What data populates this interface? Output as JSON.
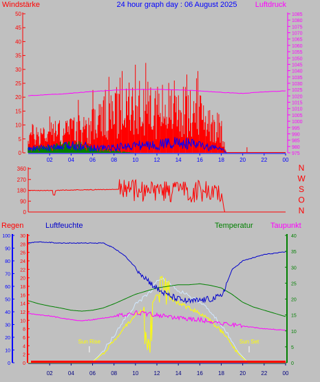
{
  "chart_data": [
    {
      "id": "wind",
      "type": "bar",
      "title": "24 hour graph day : 06 August 2025",
      "left_label": "Windstärke",
      "right_label": "Luftdruck",
      "x_ticks": [
        "02",
        "04",
        "06",
        "08",
        "10",
        "12",
        "14",
        "16",
        "18",
        "20",
        "22",
        "00"
      ],
      "x_range": [
        0,
        24
      ],
      "ylim_left": [
        0,
        50
      ],
      "y_ticks_left": [
        "0",
        "5",
        "10",
        "15",
        "20",
        "25",
        "30",
        "35",
        "40",
        "45",
        "50"
      ],
      "ylim_right": [
        975,
        1085
      ],
      "y_ticks_right": [
        "975",
        "980",
        "985",
        "990",
        "995",
        "1000",
        "1005",
        "1010",
        "1015",
        "1020",
        "1025",
        "1030",
        "1035",
        "1040",
        "1045",
        "1050",
        "1055",
        "1060",
        "1065",
        "1070",
        "1075",
        "1080",
        "1085"
      ],
      "gust_profile": {
        "hours": [
          0,
          2,
          4,
          5,
          6,
          8,
          9,
          10,
          11,
          12,
          13,
          14,
          15,
          16,
          17,
          18,
          18.5,
          24
        ],
        "values": [
          8,
          9,
          10,
          11,
          13,
          18,
          18,
          20,
          20,
          19,
          20,
          19,
          18,
          17,
          15,
          10,
          0,
          0
        ]
      },
      "wind_profile": {
        "hours": [
          0,
          2,
          3,
          4,
          5,
          6,
          8,
          10,
          12,
          13,
          14,
          16,
          17,
          18,
          18.5,
          24
        ],
        "values": [
          1.5,
          2,
          2,
          3,
          3,
          2,
          2,
          3,
          3,
          4,
          4,
          3,
          2,
          1.5,
          0,
          0
        ]
      },
      "calm_profile": {
        "hours": [
          0,
          2,
          3,
          4,
          5,
          6,
          7,
          8,
          10,
          24
        ],
        "values": [
          1,
          1.5,
          2,
          2,
          2,
          1,
          0.8,
          0.5,
          0,
          0
        ]
      },
      "pressure": {
        "hours": [
          0,
          3,
          6,
          9,
          12,
          15,
          18,
          20,
          22,
          24
        ],
        "values": [
          1020.2,
          1021.5,
          1023.5,
          1025,
          1025.2,
          1024.5,
          1022.8,
          1022,
          1023.2,
          1024
        ]
      },
      "annotations": [
        {
          "hour": 20.4,
          "value": 2
        }
      ],
      "colors": {
        "gust": "#ff0000",
        "wind": "#0000ff",
        "calm": "#008000",
        "pressure": "#ff00ff",
        "left_axis": "#ff0000",
        "right_axis": "#ff00ff",
        "bottom_axis": "#0000ff"
      }
    },
    {
      "id": "direction",
      "type": "line",
      "right_letters": [
        "N",
        "W",
        "S",
        "O",
        "N"
      ],
      "ylim": [
        0,
        360
      ],
      "y_ticks": [
        "0",
        "90",
        "180",
        "270",
        "360"
      ],
      "direction": {
        "hours": [
          0,
          2,
          4,
          6,
          8,
          9,
          10,
          11,
          12,
          13,
          14,
          15,
          16,
          17,
          18,
          18.3,
          24
        ],
        "values": [
          180,
          178,
          183,
          185,
          188,
          195,
          178,
          170,
          165,
          170,
          168,
          160,
          175,
          168,
          175,
          0,
          0
        ]
      },
      "colors": {
        "line": "#ff0000",
        "left_axis": "#ff0000",
        "right_letters": "#ff0000",
        "bottom_axis": "#ff0000"
      }
    },
    {
      "id": "temp-humidity",
      "type": "line",
      "labels": {
        "regen": "Regen",
        "luftfeuchte": "Luftfeuchte",
        "temperatur": "Temperatur",
        "taupunkt": "Taupunkt",
        "sun_rise": "Sun Rise",
        "sun_set": "Sun Set"
      },
      "sun_rise_hour": 5.7,
      "sun_set_hour": 20.6,
      "x_ticks": [
        "02",
        "04",
        "06",
        "08",
        "10",
        "12",
        "14",
        "16",
        "18",
        "20",
        "22",
        "00"
      ],
      "ylim_humidity": [
        0,
        100
      ],
      "y_ticks_humidity": [
        "0",
        "10",
        "20",
        "30",
        "40",
        "50",
        "60",
        "70",
        "80",
        "90",
        "100"
      ],
      "ylim_rain": [
        0,
        30
      ],
      "y_ticks_rain": [
        "0",
        "2",
        "4",
        "6",
        "8",
        "10",
        "12",
        "14",
        "16",
        "18",
        "20",
        "22",
        "24",
        "26",
        "28",
        "30"
      ],
      "ylim_temp": [
        0,
        40
      ],
      "y_ticks_temp": [
        "0",
        "5",
        "10",
        "15",
        "20",
        "25",
        "30",
        "35",
        "40"
      ],
      "humidity": {
        "hours": [
          0,
          1,
          3,
          5,
          7,
          8,
          9,
          10,
          11,
          12,
          13,
          14,
          15,
          16,
          17,
          18,
          18.5,
          19,
          20,
          22,
          24
        ],
        "values": [
          94,
          95,
          94,
          94,
          94,
          90,
          84,
          75,
          66,
          58,
          53,
          50,
          48,
          49,
          50,
          52,
          62,
          73,
          80,
          85,
          87
        ]
      },
      "temperature": {
        "hours": [
          0,
          1,
          2,
          3,
          4,
          5,
          6,
          7,
          8,
          9,
          10,
          11,
          12,
          13,
          14,
          15,
          16,
          17,
          18,
          19,
          20,
          21,
          22,
          23,
          24
        ],
        "values": [
          19.5,
          18.5,
          17.8,
          17.2,
          16.5,
          16.2,
          16.5,
          17.2,
          18.5,
          20,
          21.5,
          22.5,
          23.5,
          24,
          24.5,
          24.5,
          24.8,
          24.3,
          23.5,
          21.5,
          19,
          17.5,
          16.5,
          15.5,
          14.5
        ]
      },
      "dewpoint": {
        "hours": [
          0,
          2,
          4,
          5,
          6,
          8,
          10,
          12,
          14,
          16,
          18,
          20,
          22,
          24
        ],
        "values": [
          15.5,
          14.7,
          13.5,
          13.2,
          13.5,
          14.5,
          15.8,
          15,
          14,
          13.5,
          12.5,
          11.5,
          10.7,
          10.2
        ]
      },
      "solar": {
        "hours": [
          0,
          5.9,
          6.5,
          7,
          8,
          9,
          10,
          11,
          11.5,
          12,
          12.5,
          13,
          14,
          15,
          16,
          17,
          18,
          19,
          19.5,
          20,
          20.5,
          24
        ],
        "values": [
          0,
          0,
          5,
          10,
          22,
          36,
          48,
          56,
          60,
          68,
          70,
          66,
          60,
          55,
          50,
          42,
          32,
          18,
          10,
          5,
          0,
          0
        ]
      },
      "rain_total": 0,
      "colors": {
        "humidity": "#0000cc",
        "temperature": "#008000",
        "dewpoint": "#ff00ff",
        "solar": "#ffff00",
        "solar_light": "#d0e8ff",
        "rain": "#ff0000",
        "regen_axis": "#ff0000",
        "humidity_axis": "#0000ff",
        "temp_axis": "#008000"
      }
    }
  ]
}
